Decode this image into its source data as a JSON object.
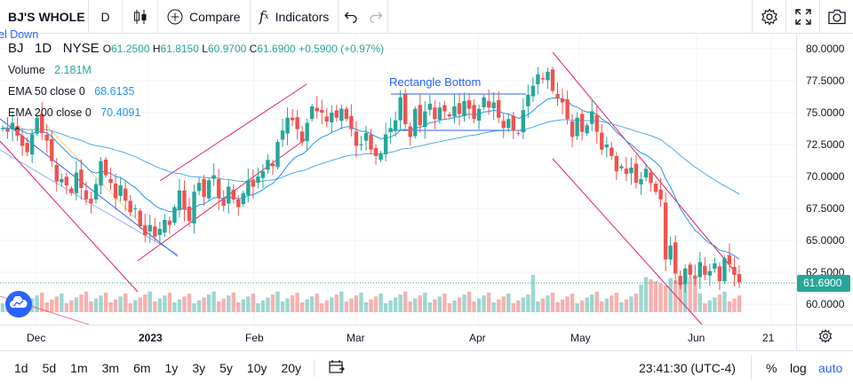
{
  "toolbar": {
    "symbol": "BJ'S WHOLE",
    "interval": "D",
    "compare_label": "Compare",
    "indicators_label": "Indicators",
    "icons": [
      "candles-icon",
      "plus-circle-icon",
      "fx-icon",
      "undo-icon",
      "redo-icon",
      "gear-icon",
      "fullscreen-icon",
      "camera-icon"
    ]
  },
  "legend": {
    "ticker": "BJ",
    "interval": "1D",
    "exchange": "NYSE",
    "open_label": "O",
    "open": "61.2500",
    "high_label": "H",
    "high": "61.8150",
    "low_label": "L",
    "low": "60.9700",
    "close_label": "C",
    "close": "61.6900",
    "change": "+0.5900 (+0.97%)",
    "volume_label": "Volume",
    "volume": "2.181M",
    "ema50_label": "EMA 50 close 0",
    "ema50": "68.6135",
    "ema200_label": "EMA 200 close 0",
    "ema200": "70.4091",
    "partial_text": "el Down",
    "rectangle_label": "Rectangle Bottom"
  },
  "price_axis": [
    "80.0000",
    "77.5000",
    "75.0000",
    "72.5000",
    "70.0000",
    "67.5000",
    "65.0000",
    "62.5000",
    "60.0000"
  ],
  "last_price": "61.6900",
  "time_axis": [
    {
      "label": "Dec",
      "bold": false
    },
    {
      "label": "2023",
      "bold": true
    },
    {
      "label": "Feb",
      "bold": false
    },
    {
      "label": "Mar",
      "bold": false
    },
    {
      "label": "Apr",
      "bold": false
    },
    {
      "label": "May",
      "bold": false
    },
    {
      "label": "Jun",
      "bold": false
    },
    {
      "label": "21",
      "bold": false
    }
  ],
  "ranges": [
    "1d",
    "5d",
    "1m",
    "3m",
    "6m",
    "1y",
    "3y",
    "5y",
    "10y",
    "20y"
  ],
  "clock": "23:41:30 (UTC-4)",
  "scale_buttons": {
    "percent": "%",
    "log": "log",
    "auto": "auto"
  },
  "colors": {
    "up": "#26a69a",
    "down": "#ef5350",
    "ema50": "#2196f3",
    "ema200": "#2962ff",
    "channel": "#e91e63",
    "accent": "#2962ff"
  }
}
